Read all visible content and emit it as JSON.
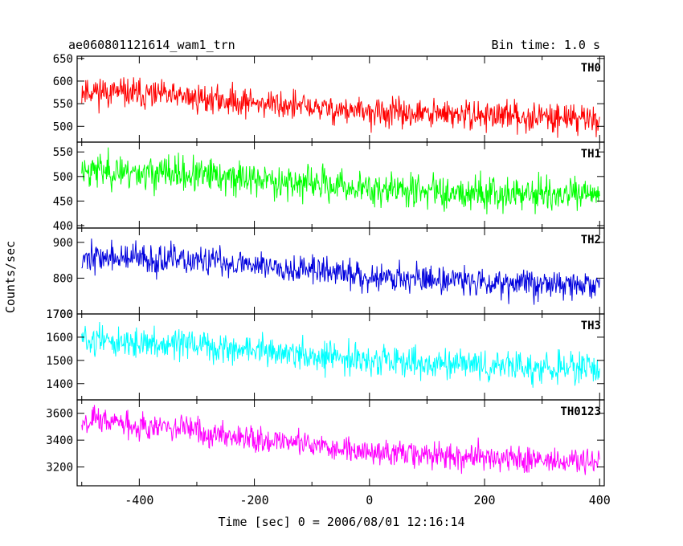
{
  "header": {
    "title": "ae060801121614_wam1_trn",
    "bin_time": "Bin time: 1.0 s"
  },
  "axes": {
    "ylabel": "Counts/sec",
    "xlabel": "Time [sec] 0 = 2006/08/01 12:16:14"
  },
  "chart_data": {
    "type": "line",
    "title": "ae060801121614_wam1_trn",
    "xlabel": "Time [sec] 0 = 2006/08/01 12:16:14",
    "ylabel": "Counts/sec",
    "xlim": [
      -508,
      408
    ],
    "x_ticks": [
      -400,
      -200,
      0,
      200,
      400
    ],
    "x_tick_labels": [
      "-400",
      "-200",
      "0",
      "200",
      "400"
    ],
    "bin_time_s": 1.0,
    "grid": false,
    "panels": [
      {
        "name": "TH0",
        "color": "#ff0000",
        "ylim": [
          465,
          655
        ],
        "y_ticks": [
          500,
          550,
          600,
          650
        ],
        "y_tick_labels": [
          "500",
          "550",
          "600",
          "650"
        ],
        "trend": [
          {
            "x": -500,
            "y": 580
          },
          {
            "x": -200,
            "y": 553
          },
          {
            "x": 0,
            "y": 530
          },
          {
            "x": 400,
            "y": 518
          }
        ],
        "noise_amplitude": 55,
        "seed": 11
      },
      {
        "name": "TH1",
        "color": "#00ff00",
        "ylim": [
          395,
          570
        ],
        "y_ticks": [
          400,
          450,
          500,
          550
        ],
        "y_tick_labels": [
          "400",
          "450",
          "500",
          "550"
        ],
        "trend": [
          {
            "x": -500,
            "y": 515
          },
          {
            "x": -200,
            "y": 495
          },
          {
            "x": 0,
            "y": 475
          },
          {
            "x": 400,
            "y": 460
          }
        ],
        "noise_amplitude": 60,
        "seed": 23
      },
      {
        "name": "TH2",
        "color": "#0000dd",
        "ylim": [
          700,
          940
        ],
        "y_ticks": [
          700,
          800,
          900
        ],
        "y_tick_labels": [
          "700",
          "800",
          "900"
        ],
        "trend": [
          {
            "x": -500,
            "y": 860
          },
          {
            "x": -200,
            "y": 840
          },
          {
            "x": 0,
            "y": 805
          },
          {
            "x": 400,
            "y": 778
          }
        ],
        "noise_amplitude": 70,
        "seed": 37
      },
      {
        "name": "TH3",
        "color": "#00ffff",
        "ylim": [
          1330,
          1700
        ],
        "y_ticks": [
          1400,
          1500,
          1600,
          1700
        ],
        "y_tick_labels": [
          "1400",
          "1500",
          "1600",
          "1700"
        ],
        "trend": [
          {
            "x": -500,
            "y": 1590
          },
          {
            "x": -200,
            "y": 1545
          },
          {
            "x": 0,
            "y": 1495
          },
          {
            "x": 400,
            "y": 1460
          }
        ],
        "noise_amplitude": 110,
        "seed": 51
      },
      {
        "name": "TH0123",
        "color": "#ff00ff",
        "ylim": [
          3060,
          3700
        ],
        "y_ticks": [
          3200,
          3400,
          3600
        ],
        "y_tick_labels": [
          "3200",
          "3400",
          "3600"
        ],
        "trend": [
          {
            "x": -500,
            "y": 3560
          },
          {
            "x": -200,
            "y": 3420
          },
          {
            "x": 0,
            "y": 3310
          },
          {
            "x": 400,
            "y": 3230
          }
        ],
        "noise_amplitude": 170,
        "seed": 67
      }
    ]
  }
}
